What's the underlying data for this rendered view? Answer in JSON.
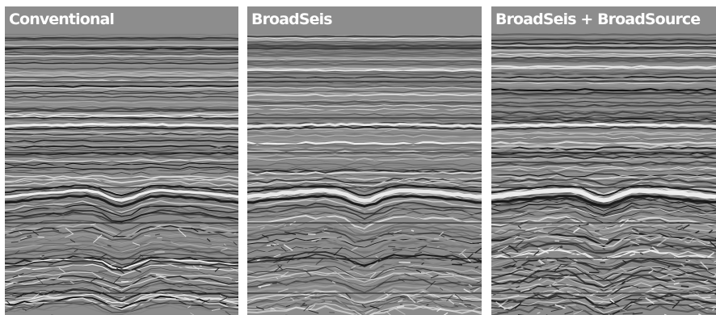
{
  "panels": [
    {
      "title": "Conventional",
      "noise": 0.25,
      "contrast": 0.8,
      "seed": 11
    },
    {
      "title": "BroadSeis",
      "noise": 0.45,
      "contrast": 1.15,
      "seed": 23
    },
    {
      "title": "BroadSeis + BroadSource",
      "noise": 0.6,
      "contrast": 1.3,
      "seed": 37
    }
  ],
  "colors": {
    "header": "#8d8d8d",
    "header_text": "#ffffff",
    "grid": "#1a1a1a",
    "bright": "#f4f4f4",
    "dark": "#101010"
  }
}
